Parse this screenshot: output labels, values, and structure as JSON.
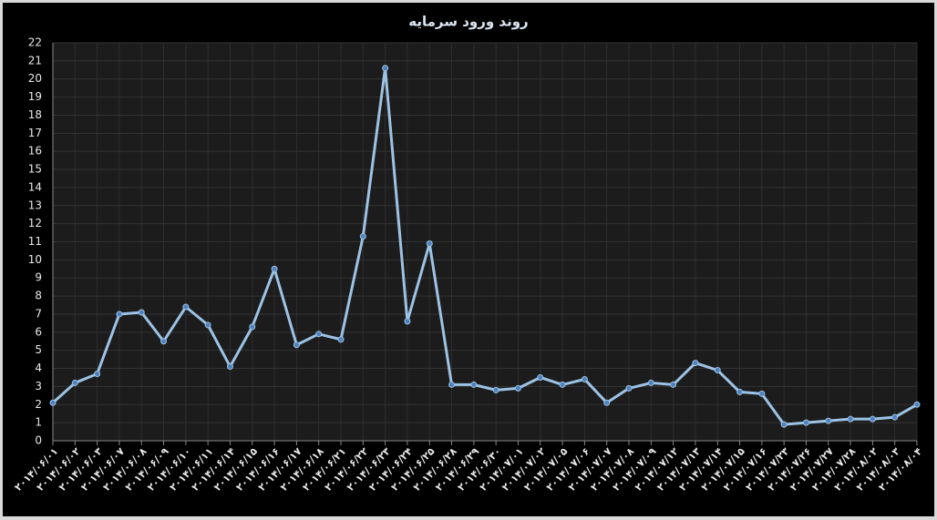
{
  "chart_data": {
    "type": "line",
    "title": "روند ورود سرمایه",
    "categories": [
      "۲۰۱۴/۰۶/۰۱",
      "۲۰۱۴/۰۶/۰۲",
      "۲۰۱۴/۰۶/۰۳",
      "۲۰۱۴/۰۶/۰۷",
      "۲۰۱۴/۰۶/۰۸",
      "۲۰۱۴/۰۶/۰۹",
      "۲۰۱۴/۰۶/۱۰",
      "۲۰۱۴/۰۶/۱۱",
      "۲۰۱۴/۰۶/۱۴",
      "۲۰۱۴/۰۶/۱۵",
      "۲۰۱۴/۰۶/۱۶",
      "۲۰۱۴/۰۶/۱۷",
      "۲۰۱۴/۰۶/۱۸",
      "۲۰۱۴/۰۶/۲۱",
      "۲۰۱۴/۰۶/۲۲",
      "۲۰۱۴/۰۶/۲۳",
      "۲۰۱۴/۰۶/۲۴",
      "۲۰۱۴/۰۶/۲۵",
      "۲۰۱۴/۰۶/۲۸",
      "۲۰۱۴/۰۶/۲۹",
      "۲۰۱۴/۰۶/۳۰",
      "۲۰۱۴/۰۷/۰۱",
      "۲۰۱۴/۰۷/۰۲",
      "۲۰۱۴/۰۷/۰۵",
      "۲۰۱۴/۰۷/۰۶",
      "۲۰۱۴/۰۷/۰۷",
      "۲۰۱۴/۰۷/۰۸",
      "۲۰۱۴/۰۷/۰۹",
      "۲۰۱۴/۰۷/۱۲",
      "۲۰۱۴/۰۷/۱۳",
      "۲۰۱۴/۰۷/۱۴",
      "۲۰۱۴/۰۷/۱۵",
      "۲۰۱۴/۰۷/۱۶",
      "۲۰۱۴/۰۷/۲۳",
      "۲۰۱۴/۰۷/۲۶",
      "۲۰۱۴/۰۷/۲۷",
      "۲۰۱۴/۰۷/۲۸",
      "۲۰۱۴/۰۸/۰۲",
      "۲۰۱۴/۰۸/۰۳",
      "۲۰۱۴/۰۸/۰۴"
    ],
    "values": [
      2.1,
      3.2,
      3.7,
      7.0,
      7.1,
      5.5,
      7.4,
      6.4,
      4.1,
      6.3,
      9.5,
      5.3,
      5.9,
      5.6,
      11.3,
      20.6,
      6.6,
      10.9,
      3.1,
      3.1,
      2.8,
      2.9,
      3.5,
      3.1,
      3.4,
      2.1,
      2.9,
      3.2,
      3.1,
      4.3,
      3.9,
      2.7,
      2.6,
      0.9,
      1.0,
      1.1,
      1.2,
      1.2,
      1.3,
      2.0
    ],
    "color": "#9cc3e5",
    "marker_color": "#4f81bd",
    "ylim": [
      0,
      22
    ],
    "yticks": [
      0,
      1,
      2,
      3,
      4,
      5,
      6,
      7,
      8,
      9,
      10,
      11,
      12,
      13,
      14,
      15,
      16,
      17,
      18,
      19,
      20,
      21,
      22
    ],
    "grid": true
  }
}
